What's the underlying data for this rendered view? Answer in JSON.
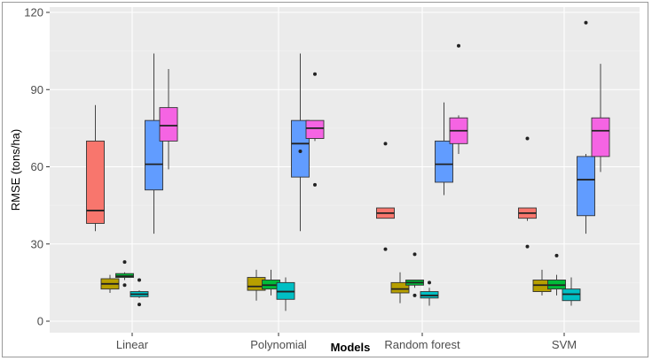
{
  "chart_data": {
    "type": "boxplot",
    "xlabel": "Models",
    "ylabel": "RMSE (tons/ha)",
    "ylim": [
      0,
      120
    ],
    "yticks": [
      0,
      30,
      60,
      90,
      120
    ],
    "grid": true,
    "legend": "none",
    "categories": [
      "Linear",
      "Polynomial",
      "Random forest",
      "SVM"
    ],
    "series": [
      {
        "color": "#f8766d",
        "boxes": [
          {
            "category": "Linear",
            "min": 35,
            "q1": 38,
            "median": 43,
            "q3": 70,
            "max": 84,
            "outliers": []
          },
          {
            "category": "Random forest",
            "min": 40,
            "q1": 40,
            "median": 42,
            "q3": 44,
            "max": 44,
            "outliers": [
              69,
              28
            ]
          },
          {
            "category": "SVM",
            "min": 39,
            "q1": 40,
            "median": 42,
            "q3": 44,
            "max": 44,
            "outliers": [
              71,
              29
            ]
          }
        ]
      },
      {
        "color": "#b79f00",
        "boxes": [
          {
            "category": "Linear",
            "min": 11,
            "q1": 12.5,
            "median": 14.5,
            "q3": 16.5,
            "max": 18,
            "outliers": []
          },
          {
            "category": "Polynomial",
            "min": 8,
            "q1": 12,
            "median": 13.5,
            "q3": 17,
            "max": 20,
            "outliers": []
          },
          {
            "category": "Random forest",
            "min": 7,
            "q1": 11,
            "median": 12.5,
            "q3": 15,
            "max": 19,
            "outliers": []
          },
          {
            "category": "SVM",
            "min": 10,
            "q1": 11.5,
            "median": 14,
            "q3": 16,
            "max": 20,
            "outliers": []
          }
        ]
      },
      {
        "color": "#00ba38",
        "boxes": [
          {
            "category": "Linear",
            "min": 16,
            "q1": 17,
            "median": 17.5,
            "q3": 18.5,
            "max": 19,
            "outliers": [
              23,
              14
            ]
          },
          {
            "category": "Polynomial",
            "min": 10,
            "q1": 12.5,
            "median": 14,
            "q3": 16,
            "max": 20,
            "outliers": []
          },
          {
            "category": "Random forest",
            "min": 13,
            "q1": 14,
            "median": 15,
            "q3": 16,
            "max": 16,
            "outliers": [
              26,
              10
            ]
          },
          {
            "category": "SVM",
            "min": 10,
            "q1": 12.5,
            "median": 14,
            "q3": 16,
            "max": 18,
            "outliers": [
              25.5
            ]
          }
        ]
      },
      {
        "color": "#00bfc4",
        "boxes": [
          {
            "category": "Linear",
            "min": 9,
            "q1": 9.5,
            "median": 10.5,
            "q3": 11.5,
            "max": 12,
            "outliers": [
              16,
              6.5
            ]
          },
          {
            "category": "Polynomial",
            "min": 4,
            "q1": 8.5,
            "median": 11.5,
            "q3": 15,
            "max": 17,
            "outliers": []
          },
          {
            "category": "Random forest",
            "min": 6,
            "q1": 9,
            "median": 10,
            "q3": 11.5,
            "max": 13,
            "outliers": [
              15
            ]
          },
          {
            "category": "SVM",
            "min": 6,
            "q1": 8,
            "median": 10.5,
            "q3": 12.5,
            "max": 17,
            "outliers": []
          }
        ]
      },
      {
        "color": "#619cff",
        "boxes": [
          {
            "category": "Linear",
            "min": 34,
            "q1": 51,
            "median": 61,
            "q3": 78,
            "max": 104,
            "outliers": []
          },
          {
            "category": "Polynomial",
            "min": 35,
            "q1": 56,
            "median": 69,
            "q3": 78,
            "max": 104,
            "outliers": [
              66
            ]
          },
          {
            "category": "Random forest",
            "min": 49,
            "q1": 54,
            "median": 61,
            "q3": 70,
            "max": 85,
            "outliers": []
          },
          {
            "category": "SVM",
            "min": 34,
            "q1": 41,
            "median": 55,
            "q3": 64,
            "max": 65,
            "outliers": [
              116
            ]
          }
        ]
      },
      {
        "color": "#f564e3",
        "boxes": [
          {
            "category": "Linear",
            "min": 59,
            "q1": 70,
            "median": 76,
            "q3": 83,
            "max": 98,
            "outliers": []
          },
          {
            "category": "Polynomial",
            "min": 70,
            "q1": 71,
            "median": 75,
            "q3": 78,
            "max": 78,
            "outliers": [
              96,
              53
            ]
          },
          {
            "category": "Random forest",
            "min": 65,
            "q1": 69,
            "median": 74,
            "q3": 79,
            "max": 80,
            "outliers": [
              107
            ]
          },
          {
            "category": "SVM",
            "min": 58,
            "q1": 64,
            "median": 74,
            "q3": 79,
            "max": 100,
            "outliers": []
          }
        ]
      }
    ]
  }
}
